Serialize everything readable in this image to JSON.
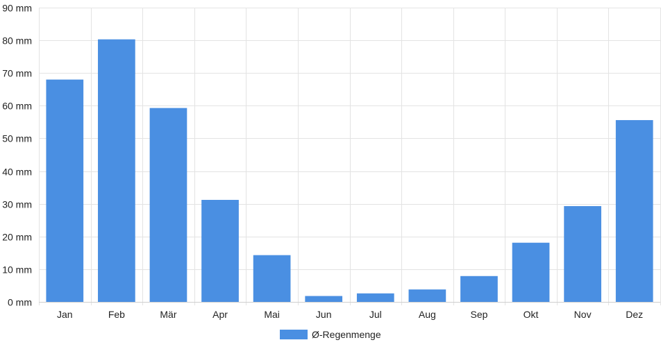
{
  "chart_data": {
    "type": "bar",
    "categories": [
      "Jan",
      "Feb",
      "Mär",
      "Apr",
      "Mai",
      "Jun",
      "Jul",
      "Aug",
      "Sep",
      "Okt",
      "Nov",
      "Dez"
    ],
    "series": [
      {
        "name": "Ø-Regenmenge",
        "values": [
          68,
          80.3,
          59.3,
          31.2,
          14.3,
          1.8,
          2.6,
          3.8,
          7.9,
          18.1,
          29.3,
          55.6
        ],
        "color": "#4a8fe2"
      }
    ],
    "y_unit_suffix": " mm",
    "ylim": [
      0,
      90
    ],
    "y_ticks": [
      0,
      10,
      20,
      30,
      40,
      50,
      60,
      70,
      80,
      90
    ],
    "grid": true,
    "legend_position": "bottom-center"
  }
}
